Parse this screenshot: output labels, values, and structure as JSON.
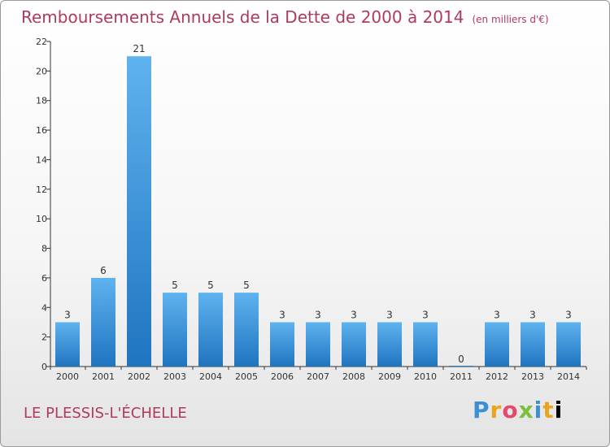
{
  "header": {
    "title": "Remboursements Annuels de la Dette de 2000 à 2014",
    "unit": "(en milliers d'€)"
  },
  "footer": {
    "town": "LE PLESSIS-L'ÉCHELLE",
    "logo_letters": [
      "P",
      "r",
      "o",
      "x",
      "i",
      "t",
      "i"
    ]
  },
  "chart_data": {
    "type": "bar",
    "title": "Remboursements Annuels de la Dette de 2000 à 2014",
    "xlabel": "",
    "ylabel": "",
    "categories": [
      "2000",
      "2001",
      "2002",
      "2003",
      "2004",
      "2005",
      "2006",
      "2007",
      "2008",
      "2009",
      "2010",
      "2011",
      "2012",
      "2013",
      "2014"
    ],
    "values": [
      3,
      6,
      21,
      5,
      5,
      5,
      3,
      3,
      3,
      3,
      3,
      0,
      3,
      3,
      3
    ],
    "data_labels": [
      "3",
      "6",
      "21",
      "5",
      "5",
      "5",
      "3",
      "3",
      "3",
      "3",
      "3",
      "0",
      "3",
      "3",
      "3"
    ],
    "ylim": [
      0,
      22
    ],
    "yticks": [
      0,
      2,
      4,
      6,
      8,
      10,
      12,
      14,
      16,
      18,
      20,
      22
    ],
    "grid": false,
    "bar_color": "#3d9be3"
  }
}
